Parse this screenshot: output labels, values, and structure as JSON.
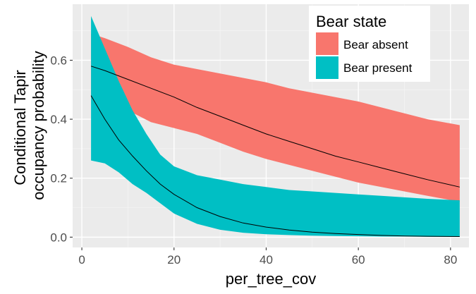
{
  "chart_data": {
    "type": "area",
    "xlabel": "per_tree_cov",
    "ylabel_lines": [
      "Conditional Tapir",
      "occupancy probability"
    ],
    "xlim": [
      -2,
      84
    ],
    "ylim": [
      -0.035,
      0.79
    ],
    "x_ticks": [
      0,
      20,
      40,
      60,
      80
    ],
    "x_tick_labels": [
      "0",
      "20",
      "40",
      "60",
      "80"
    ],
    "y_ticks": [
      0.0,
      0.2,
      0.4,
      0.6
    ],
    "y_tick_labels": [
      "0.0",
      "0.2",
      "0.4",
      "0.6"
    ],
    "grid": true,
    "legend": {
      "title": "Bear state",
      "position": "top-right"
    },
    "series": [
      {
        "name": "Bear absent",
        "color": "#F8766D",
        "x": [
          2,
          5,
          10,
          15,
          20,
          25,
          30,
          35,
          40,
          45,
          50,
          55,
          60,
          65,
          70,
          75,
          82
        ],
        "mean": [
          0.58,
          0.565,
          0.535,
          0.505,
          0.475,
          0.44,
          0.41,
          0.38,
          0.35,
          0.325,
          0.3,
          0.275,
          0.255,
          0.235,
          0.215,
          0.195,
          0.17
        ],
        "upper": [
          0.69,
          0.675,
          0.645,
          0.61,
          0.585,
          0.57,
          0.555,
          0.54,
          0.525,
          0.505,
          0.49,
          0.475,
          0.46,
          0.44,
          0.42,
          0.4,
          0.38
        ],
        "lower": [
          0.48,
          0.47,
          0.43,
          0.39,
          0.37,
          0.35,
          0.32,
          0.29,
          0.265,
          0.245,
          0.225,
          0.205,
          0.185,
          0.17,
          0.155,
          0.14,
          0.12
        ]
      },
      {
        "name": "Bear present",
        "color": "#00BFC4",
        "x": [
          2,
          5,
          8,
          11,
          14,
          17,
          20,
          25,
          30,
          35,
          40,
          45,
          50,
          55,
          60,
          65,
          70,
          75,
          82
        ],
        "mean": [
          0.48,
          0.4,
          0.33,
          0.275,
          0.225,
          0.18,
          0.145,
          0.1,
          0.07,
          0.048,
          0.034,
          0.024,
          0.017,
          0.012,
          0.009,
          0.006,
          0.004,
          0.003,
          0.002
        ],
        "upper": [
          0.75,
          0.64,
          0.53,
          0.43,
          0.35,
          0.28,
          0.24,
          0.21,
          0.195,
          0.18,
          0.17,
          0.16,
          0.155,
          0.15,
          0.145,
          0.14,
          0.135,
          0.13,
          0.125
        ],
        "lower": [
          0.26,
          0.25,
          0.22,
          0.18,
          0.15,
          0.115,
          0.08,
          0.045,
          0.025,
          0.015,
          0.01,
          0.007,
          0.005,
          0.004,
          0.003,
          0.002,
          0.002,
          0.001,
          0.001
        ]
      }
    ]
  }
}
